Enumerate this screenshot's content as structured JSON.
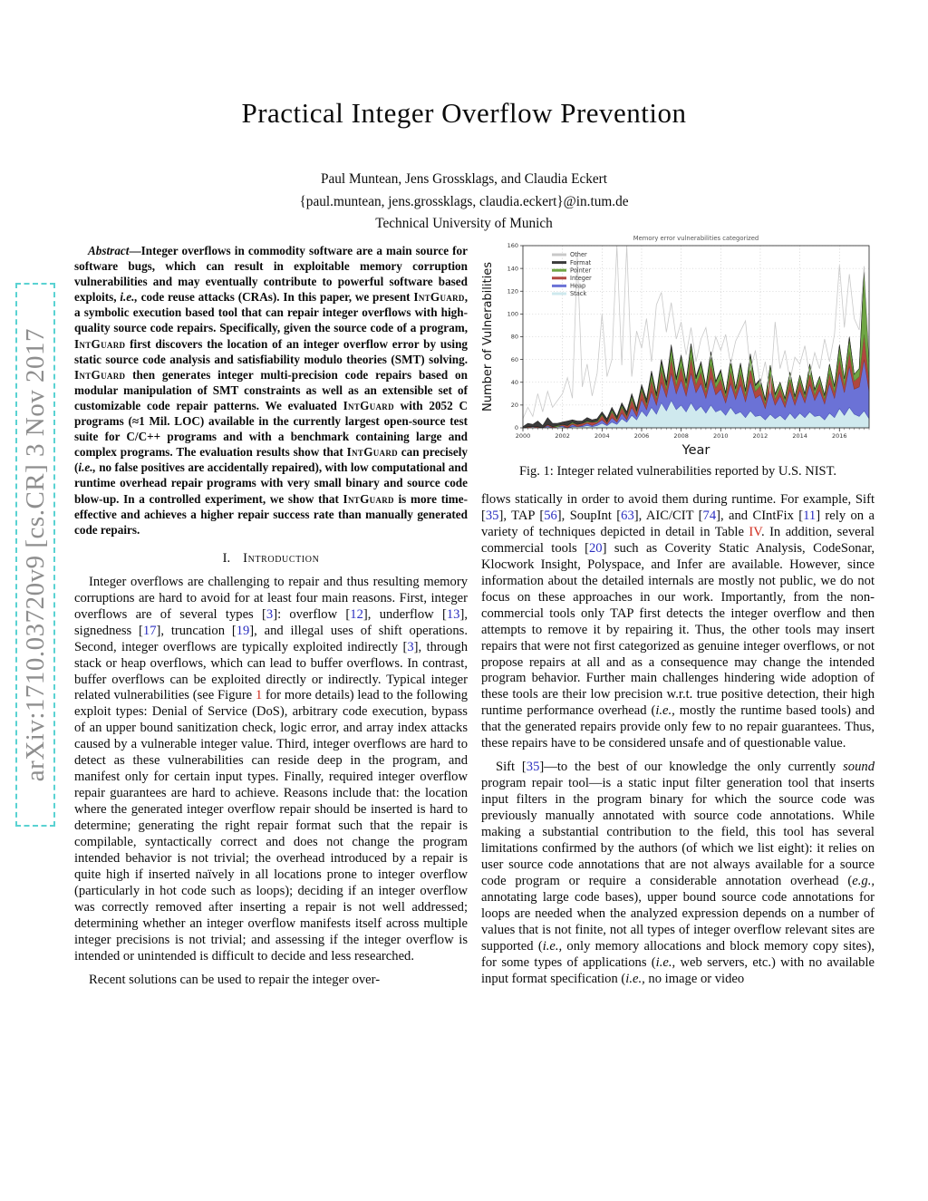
{
  "arxiv_sidebar": {
    "text": "arXiv:1710.03720v9 [cs.CR] 3 Nov 2017"
  },
  "header": {
    "title": "Practical Integer Overflow Prevention",
    "authors": "Paul Muntean, Jens Grossklags, and Claudia Eckert",
    "emails": "{paul.muntean, jens.grossklags, claudia.eckert}@in.tum.de",
    "affiliation": "Technical University of Munich"
  },
  "abstract": {
    "segments": [
      [
        "bi",
        "Abstract"
      ],
      [
        "b",
        "—Integer overflows in commodity software are a main source for software bugs, which can result in exploitable memory corruption vulnerabilities and may eventually contribute to powerful software based exploits, "
      ],
      [
        "bi",
        "i.e.,"
      ],
      [
        "b",
        " code reuse attacks (CRAs). In this paper, we present "
      ],
      [
        "bsc",
        "IntGuard"
      ],
      [
        "b",
        ", a symbolic execution based tool that can repair integer overflows with high-quality source code repairs. Specifically, given the source code of a program, "
      ],
      [
        "bsc",
        "IntGuard"
      ],
      [
        "b",
        " first discovers the location of an integer overflow error by using static source code analysis and satisfiability modulo theories (SMT) solving. "
      ],
      [
        "bsc",
        "IntGuard"
      ],
      [
        "b",
        " then generates integer multi-precision code repairs based on modular manipulation of SMT constraints as well as an extensible set of customizable code repair patterns. We evaluated "
      ],
      [
        "bsc",
        "IntGuard"
      ],
      [
        "b",
        " with 2052 C programs (≈1 Mil. LOC) available in the currently largest open-source test suite for C/C++ programs and with a benchmark containing large and complex programs. The evaluation results show that "
      ],
      [
        "bsc",
        "IntGuard"
      ],
      [
        "b",
        " can precisely ("
      ],
      [
        "bi",
        "i.e.,"
      ],
      [
        "b",
        " no false positives are accidentally repaired), with low computational and runtime overhead repair programs with very small binary and source code blow-up. In a controlled experiment, we show that "
      ],
      [
        "bsc",
        "IntGuard"
      ],
      [
        "b",
        " is more time-effective and achieves a higher repair success rate than manually generated code repairs."
      ]
    ]
  },
  "sections": {
    "intro": {
      "number": "I.",
      "title": "Introduction"
    }
  },
  "intro": {
    "para1": [
      [
        "",
        "Integer overflows are challenging to repair and thus resulting memory corruptions are hard to avoid for at least four main reasons. First, integer overflows are of several types ["
      ],
      [
        "c",
        "3"
      ],
      [
        "",
        "]: overflow ["
      ],
      [
        "c",
        "12"
      ],
      [
        "",
        "], underflow ["
      ],
      [
        "c",
        "13"
      ],
      [
        "",
        "], signedness ["
      ],
      [
        "c",
        "17"
      ],
      [
        "",
        "], truncation ["
      ],
      [
        "c",
        "19"
      ],
      [
        "",
        "], and illegal uses of shift operations. Second, integer overflows are typically exploited indirectly ["
      ],
      [
        "c",
        "3"
      ],
      [
        "",
        "], through stack or heap overflows, which can lead to buffer overflows. In contrast, buffer overflows can be exploited directly or indirectly. Typical integer related vulnerabilities (see Figure "
      ],
      [
        "r",
        "1"
      ],
      [
        "",
        " for more details) lead to the following exploit types: Denial of Service (DoS), arbitrary code execution, bypass of an upper bound sanitization check, logic error, and array index attacks caused by a vulnerable integer value. Third, integer overflows are hard to detect as these vulnerabilities can reside deep in the program, and manifest only for certain input types. Finally, required integer overflow repair guarantees are hard to achieve. Reasons include that: the location where the generated integer overflow repair should be inserted is hard to determine; generating the right repair format such that the repair is compilable, syntactically correct and does not change the program intended behavior is not trivial; the overhead introduced by a repair is quite high if inserted naïvely in all locations prone to integer overflow (particularly in hot code such as loops); deciding if an integer overflow was correctly removed after inserting a repair is not well addressed; determining whether an integer overflow manifests itself across multiple integer precisions is not trivial; and assessing if the integer overflow is intended or unintended is difficult to decide and less researched."
      ]
    ],
    "para2": [
      [
        "",
        "Recent solutions can be used to repair the integer over-"
      ]
    ]
  },
  "right_column": {
    "para1": [
      [
        "",
        "flows statically in order to avoid them during runtime. For example, Sift ["
      ],
      [
        "c",
        "35"
      ],
      [
        "",
        "], TAP ["
      ],
      [
        "c",
        "56"
      ],
      [
        "",
        "], SoupInt ["
      ],
      [
        "c",
        "63"
      ],
      [
        "",
        "], AIC/CIT ["
      ],
      [
        "c",
        "74"
      ],
      [
        "",
        "], and CIntFix ["
      ],
      [
        "c",
        "11"
      ],
      [
        "",
        "] rely on a variety of techniques depicted in detail in Table "
      ],
      [
        "r",
        "IV"
      ],
      [
        "",
        ". In addition, several commercial tools ["
      ],
      [
        "c",
        "20"
      ],
      [
        "",
        "] such as Coverity Static Analysis, CodeSonar, Klocwork Insight, Polyspace, and Infer are available. However, since information about the detailed internals are mostly not public, we do not focus on these approaches in our work. Importantly, from the non-commercial tools only TAP first detects the integer overflow and then attempts to remove it by repairing it. Thus, the other tools may insert repairs that were not first categorized as genuine integer overflows, or not propose repairs at all and as a consequence may change the intended program behavior. Further main challenges hindering wide adoption of these tools are their low precision w.r.t. true positive detection, their high runtime performance overhead ("
      ],
      [
        "i",
        "i.e.,"
      ],
      [
        "",
        " mostly the runtime based tools) and that the generated repairs provide only few to no repair guarantees. Thus, these repairs have to be considered unsafe and of questionable value."
      ]
    ],
    "para2": [
      [
        "",
        "Sift ["
      ],
      [
        "c",
        "35"
      ],
      [
        "",
        "]—to the best of our knowledge the only currently "
      ],
      [
        "i",
        "sound"
      ],
      [
        "",
        " program repair tool—is a static input filter generation tool that inserts input filters in the program binary for which the source code was previously manually annotated with source code annotations. While making a substantial contribution to the field, this tool has several limitations confirmed by the authors (of which we list eight): it relies on user source code annotations that are not always available for a source code program or require a considerable annotation overhead ("
      ],
      [
        "i",
        "e.g.,"
      ],
      [
        "",
        " annotating large code bases), upper bound source code annotations for loops are needed when the analyzed expression depends on a number of values that is not finite, not all types of integer overflow relevant sites are supported ("
      ],
      [
        "i",
        "i.e.,"
      ],
      [
        "",
        " only memory allocations and block memory copy sites), for some types of applications ("
      ],
      [
        "i",
        "i.e.,"
      ],
      [
        "",
        " web servers, etc.) with no available input format specification ("
      ],
      [
        "i",
        "i.e.,"
      ],
      [
        "",
        " no image or video"
      ]
    ]
  },
  "figure": {
    "caption": "Fig. 1: Integer related vulnerabilities reported by U.S. NIST."
  },
  "chart_data": {
    "type": "area",
    "stacked": true,
    "title": "Memory error vulnerabilities categorized",
    "xlabel": "Year",
    "ylabel": "Number of Vulnerabilities",
    "xlim": [
      2000,
      2017.5
    ],
    "ylim": [
      0,
      160
    ],
    "x_start": 2000,
    "x_step": 0.25,
    "xticks": [
      2000,
      2002,
      2004,
      2006,
      2008,
      2010,
      2012,
      2014,
      2016
    ],
    "yticks": [
      0,
      20,
      40,
      60,
      80,
      100,
      120,
      140,
      160
    ],
    "grid": true,
    "legend_position": "upper-left",
    "stack_order": [
      "Stack",
      "Heap",
      "Integer",
      "Pointer",
      "Format"
    ],
    "series": [
      {
        "name": "Other",
        "type": "line",
        "color": "#c9c9c9",
        "stroke": "#c9c9c9",
        "values": [
          8,
          18,
          10,
          30,
          14,
          32,
          18,
          24,
          30,
          44,
          26,
          151,
          36,
          56,
          28,
          48,
          100,
          45,
          60,
          160,
          55,
          160,
          45,
          85,
          70,
          96,
          58,
          108,
          119,
          84,
          110,
          78,
          93,
          64,
          88,
          58,
          78,
          88,
          60,
          80,
          68,
          82,
          56,
          76,
          85,
          94,
          50,
          68,
          38,
          58,
          30,
          93,
          52,
          68,
          42,
          62,
          56,
          72,
          46,
          66,
          52,
          78,
          58,
          82,
          143,
          88,
          135,
          96,
          86,
          142,
          64
        ]
      },
      {
        "name": "Format",
        "type": "stack",
        "color": "#3b3b3b",
        "stroke": "#222222",
        "values": [
          1,
          3,
          2,
          5,
          2,
          6,
          3,
          2,
          2,
          4,
          2,
          3,
          2,
          3,
          2,
          2,
          2,
          3,
          2,
          2,
          2,
          3,
          2,
          2,
          2,
          3,
          2,
          2,
          2,
          3,
          2,
          2,
          1,
          2,
          1,
          2,
          1,
          2,
          1,
          1,
          1,
          1,
          1,
          1,
          1,
          1,
          1,
          1,
          1,
          1,
          0,
          1,
          0,
          1,
          0,
          1,
          0,
          1,
          0,
          1,
          0,
          1,
          0,
          1,
          1,
          0,
          1,
          0,
          0,
          1,
          0
        ]
      },
      {
        "name": "Pointer",
        "type": "stack",
        "color": "#6fa544",
        "stroke": "#55842e",
        "values": [
          0,
          0,
          0,
          0,
          0,
          0,
          0,
          1,
          0,
          0,
          1,
          0,
          0,
          1,
          0,
          1,
          1,
          0,
          2,
          1,
          2,
          1,
          3,
          1,
          3,
          2,
          6,
          3,
          7,
          4,
          10,
          5,
          9,
          5,
          11,
          5,
          8,
          4,
          10,
          5,
          7,
          3,
          9,
          4,
          8,
          4,
          11,
          5,
          5,
          3,
          8,
          4,
          5,
          3,
          7,
          3,
          5,
          3,
          8,
          4,
          5,
          3,
          8,
          5,
          11,
          6,
          12,
          6,
          7,
          58,
          16
        ]
      },
      {
        "name": "Integer",
        "type": "stack",
        "color": "#b0473f",
        "stroke": "#8c3934",
        "values": [
          0,
          1,
          0,
          1,
          0,
          1,
          1,
          0,
          1,
          2,
          1,
          2,
          2,
          1,
          3,
          1,
          4,
          2,
          5,
          2,
          5,
          3,
          7,
          4,
          8,
          4,
          10,
          5,
          11,
          6,
          13,
          7,
          12,
          6,
          14,
          7,
          10,
          5,
          12,
          6,
          9,
          5,
          11,
          5,
          10,
          5,
          12,
          6,
          8,
          4,
          13,
          5,
          7,
          4,
          9,
          4,
          8,
          4,
          10,
          5,
          7,
          4,
          9,
          5,
          12,
          6,
          13,
          7,
          9,
          22,
          10
        ]
      },
      {
        "name": "Heap",
        "type": "stack",
        "color": "#6b72d6",
        "stroke": "#4953b8",
        "values": [
          0,
          0,
          0,
          0,
          0,
          1,
          0,
          0,
          1,
          0,
          2,
          0,
          1,
          2,
          1,
          2,
          3,
          1,
          4,
          2,
          5,
          2,
          7,
          3,
          10,
          6,
          14,
          8,
          18,
          12,
          24,
          14,
          22,
          14,
          26,
          16,
          20,
          13,
          24,
          15,
          18,
          11,
          21,
          13,
          24,
          14,
          26,
          16,
          18,
          10,
          22,
          12,
          17,
          11,
          20,
          12,
          20,
          13,
          24,
          14,
          22,
          14,
          26,
          17,
          32,
          20,
          36,
          22,
          26,
          45,
          24
        ]
      },
      {
        "name": "Stack",
        "type": "stack",
        "color": "#cfe9ee",
        "stroke": "#9fcdd6",
        "values": [
          0,
          0,
          1,
          0,
          0,
          1,
          0,
          1,
          1,
          0,
          1,
          1,
          1,
          2,
          1,
          2,
          4,
          2,
          5,
          3,
          8,
          5,
          11,
          7,
          15,
          10,
          18,
          12,
          22,
          15,
          24,
          16,
          20,
          14,
          22,
          15,
          19,
          13,
          20,
          14,
          16,
          11,
          18,
          12,
          14,
          9,
          15,
          10,
          11,
          7,
          12,
          8,
          11,
          7,
          13,
          8,
          13,
          9,
          14,
          10,
          11,
          7,
          13,
          9,
          17,
          11,
          18,
          12,
          10,
          15,
          8
        ]
      }
    ]
  }
}
